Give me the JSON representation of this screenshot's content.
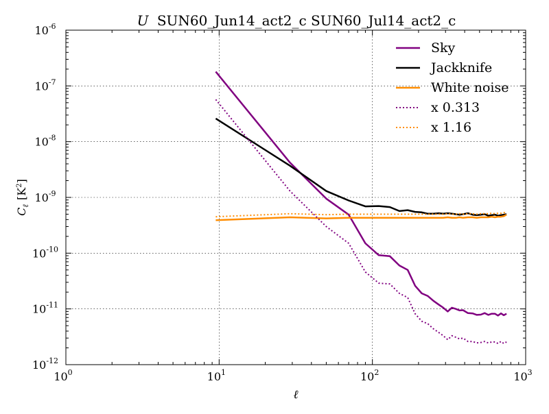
{
  "chart_data": {
    "type": "line",
    "title_italic": "U",
    "title": "SUN60_Jun14_act2_c SUN60_Jul14_act2_c",
    "xlabel": "ℓ",
    "ylabel_main": "C",
    "ylabel_sub": "ℓ",
    "ylabel_unit": "[K",
    "ylabel_unit_sup": "2",
    "ylabel_unit_close": "]",
    "xscale": "log",
    "yscale": "log",
    "xlim": [
      1,
      1000
    ],
    "ylim": [
      1e-12,
      1e-06
    ],
    "grid": true,
    "legend_position": "top-right",
    "x_ticks": [
      {
        "value": 1,
        "base": "10",
        "exp": "0"
      },
      {
        "value": 10,
        "base": "10",
        "exp": "1"
      },
      {
        "value": 100,
        "base": "10",
        "exp": "2"
      },
      {
        "value": 1000,
        "base": "10",
        "exp": "3"
      }
    ],
    "y_ticks": [
      {
        "value": 1e-12,
        "base": "10",
        "exp": "-12"
      },
      {
        "value": 1e-11,
        "base": "10",
        "exp": "-11"
      },
      {
        "value": 1e-10,
        "base": "10",
        "exp": "-10"
      },
      {
        "value": 1e-09,
        "base": "10",
        "exp": "-9"
      },
      {
        "value": 1e-08,
        "base": "10",
        "exp": "-8"
      },
      {
        "value": 1e-07,
        "base": "10",
        "exp": "-7"
      },
      {
        "value": 1e-06,
        "base": "10",
        "exp": "-6"
      }
    ],
    "series": [
      {
        "name": "Sky",
        "color": "#800080",
        "style": "solid",
        "x": [
          9.5,
          29,
          50,
          70,
          90,
          110,
          130,
          150,
          170,
          190,
          210,
          230,
          250,
          270,
          290,
          310,
          330,
          350,
          370,
          390,
          420,
          450,
          480,
          510,
          540,
          570,
          600,
          630,
          660,
          690,
          720,
          750
        ],
        "y": [
          1.8e-07,
          4.2e-09,
          9.5e-10,
          4.9e-10,
          1.5e-10,
          9.2e-11,
          8.8e-11,
          6e-11,
          5e-11,
          2.6e-11,
          1.9e-11,
          1.7e-11,
          1.4e-11,
          1.2e-11,
          1.05e-11,
          9e-12,
          1.05e-11,
          1e-11,
          9.4e-12,
          9.5e-12,
          8.4e-12,
          8.3e-12,
          7.8e-12,
          7.9e-12,
          8.4e-12,
          7.8e-12,
          8.2e-12,
          8.2e-12,
          7.6e-12,
          8.3e-12,
          7.7e-12,
          8.2e-12
        ]
      },
      {
        "name": "Jackknife",
        "color": "#000000",
        "style": "solid",
        "x": [
          9.5,
          29,
          50,
          70,
          90,
          110,
          130,
          150,
          170,
          190,
          210,
          230,
          250,
          270,
          290,
          310,
          330,
          350,
          370,
          390,
          420,
          450,
          480,
          510,
          540,
          570,
          600,
          630,
          660,
          690,
          720,
          750
        ],
        "y": [
          2.6e-08,
          3.7e-09,
          1.3e-09,
          8.8e-10,
          6.9e-10,
          7e-10,
          6.7e-10,
          5.7e-10,
          5.9e-10,
          5.5e-10,
          5.4e-10,
          5.1e-10,
          5.1e-10,
          5.2e-10,
          5.1e-10,
          5.2e-10,
          5.1e-10,
          5e-10,
          4.9e-10,
          5e-10,
          5.2e-10,
          4.9e-10,
          4.8e-10,
          4.9e-10,
          5e-10,
          4.7e-10,
          4.8e-10,
          4.9e-10,
          4.7e-10,
          4.8e-10,
          4.9e-10,
          5e-10
        ]
      },
      {
        "name": "White noise",
        "color": "#ff8c00",
        "style": "solid",
        "x": [
          9.5,
          29,
          50,
          70,
          90,
          110,
          130,
          150,
          170,
          190,
          210,
          230,
          250,
          270,
          290,
          310,
          330,
          350,
          370,
          390,
          420,
          450,
          480,
          510,
          540,
          570,
          600,
          630,
          660,
          690,
          720,
          750
        ],
        "y": [
          3.9e-10,
          4.4e-10,
          4.2e-10,
          4.3e-10,
          4.3e-10,
          4.3e-10,
          4.3e-10,
          4.3e-10,
          4.3e-10,
          4.3e-10,
          4.3e-10,
          4.3e-10,
          4.3e-10,
          4.3e-10,
          4.3e-10,
          4.4e-10,
          4.3e-10,
          4.3e-10,
          4.4e-10,
          4.3e-10,
          4.4e-10,
          4.4e-10,
          4.3e-10,
          4.4e-10,
          4.4e-10,
          4.4e-10,
          4.5e-10,
          4.4e-10,
          4.5e-10,
          4.5e-10,
          4.6e-10,
          4.9e-10
        ]
      },
      {
        "name": "x 0.313",
        "color": "#800080",
        "style": "dotted",
        "x": [
          9.5,
          29,
          50,
          70,
          90,
          110,
          130,
          150,
          170,
          190,
          210,
          230,
          250,
          270,
          290,
          310,
          330,
          350,
          370,
          390,
          420,
          450,
          480,
          510,
          540,
          570,
          600,
          630,
          660,
          690,
          720,
          750
        ],
        "y": [
          5.7e-08,
          1.3e-09,
          3e-10,
          1.5e-10,
          4.6e-11,
          2.9e-11,
          2.8e-11,
          1.9e-11,
          1.6e-11,
          8.2e-12,
          6e-12,
          5.4e-12,
          4.4e-12,
          3.8e-12,
          3.3e-12,
          2.8e-12,
          3.3e-12,
          3.1e-12,
          2.9e-12,
          3e-12,
          2.6e-12,
          2.6e-12,
          2.45e-12,
          2.5e-12,
          2.6e-12,
          2.45e-12,
          2.55e-12,
          2.55e-12,
          2.4e-12,
          2.6e-12,
          2.4e-12,
          2.55e-12
        ]
      },
      {
        "name": "x 1.16",
        "color": "#ff8c00",
        "style": "dotted",
        "x": [
          9.5,
          29,
          50,
          70,
          90,
          110,
          130,
          150,
          170,
          190,
          210,
          230,
          250,
          270,
          290,
          310,
          330,
          350,
          370,
          390,
          420,
          450,
          480,
          510,
          540,
          570,
          600,
          630,
          660,
          690,
          720,
          750
        ],
        "y": [
          4.5e-10,
          5.1e-10,
          4.9e-10,
          5e-10,
          5e-10,
          5e-10,
          5e-10,
          5e-10,
          5e-10,
          5e-10,
          5e-10,
          5e-10,
          5e-10,
          5e-10,
          5e-10,
          5.1e-10,
          5e-10,
          5e-10,
          5.1e-10,
          5e-10,
          5.1e-10,
          5.1e-10,
          5e-10,
          5.1e-10,
          5.1e-10,
          5.1e-10,
          5.2e-10,
          5.1e-10,
          5.2e-10,
          5.2e-10,
          5.3e-10,
          5.5e-10
        ]
      }
    ]
  }
}
